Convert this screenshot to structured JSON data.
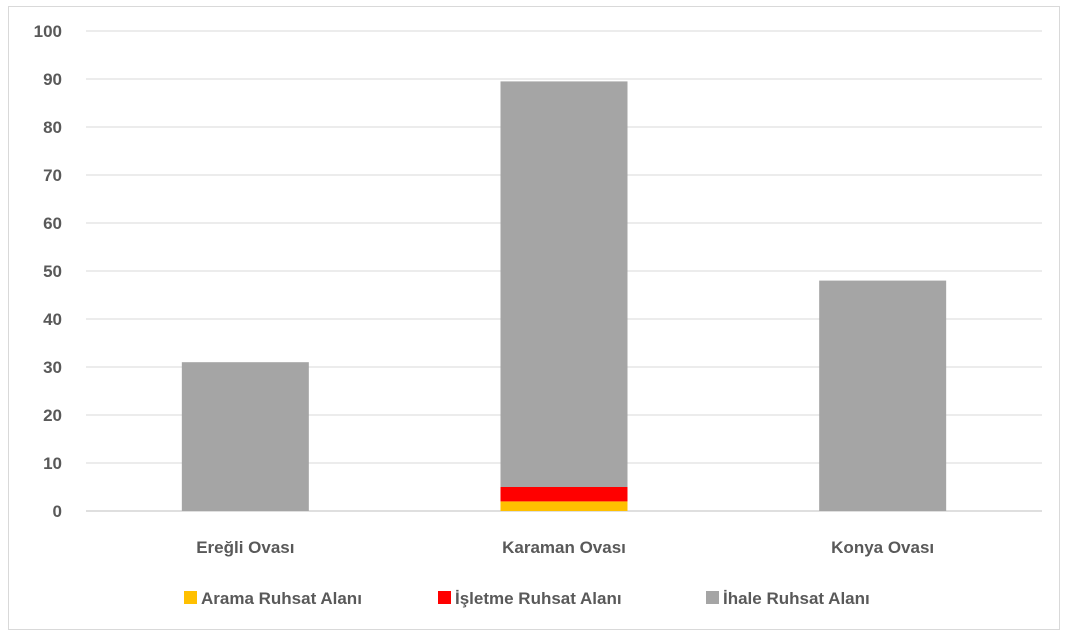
{
  "chart_data": {
    "type": "bar",
    "stacked": true,
    "categories": [
      "Ereğli Ovası",
      "Karaman Ovası",
      "Konya Ovası"
    ],
    "series": [
      {
        "name": "Arama Ruhsat Alanı",
        "color": "#FFC000",
        "values": [
          0,
          2,
          0
        ]
      },
      {
        "name": "İşletme Ruhsat Alanı",
        "color": "#FF0000",
        "values": [
          0,
          3,
          0
        ]
      },
      {
        "name": "İhale Ruhsat Alanı",
        "color": "#A5A5A5",
        "values": [
          31,
          84.5,
          48
        ]
      }
    ],
    "ylim": [
      0,
      100
    ],
    "yticks": [
      0,
      10,
      20,
      30,
      40,
      50,
      60,
      70,
      80,
      90,
      100
    ],
    "grid": true,
    "legend": "bottom",
    "title": "",
    "xlabel": "",
    "ylabel": ""
  }
}
